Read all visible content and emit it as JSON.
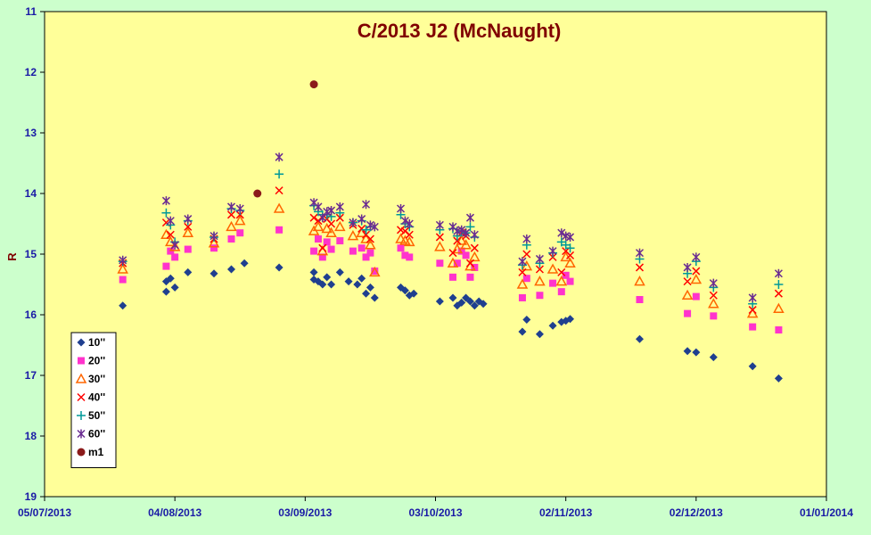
{
  "chart_data": {
    "type": "scatter",
    "title": "C/2013 J2 (McNaught)",
    "xlabel": "",
    "ylabel": "R",
    "x_type": "date",
    "xlim": [
      "2013-07-05",
      "2014-01-01"
    ],
    "x_ticks": [
      "05/07/2013",
      "04/08/2013",
      "03/09/2013",
      "03/10/2013",
      "02/11/2013",
      "02/12/2013",
      "01/01/2014"
    ],
    "ylim": [
      11,
      19
    ],
    "y_reversed": true,
    "y_ticks": [
      "11",
      "12",
      "13",
      "14",
      "15",
      "16",
      "17",
      "18",
      "19"
    ],
    "grid": false,
    "legend_position": "bottom-left",
    "colors": {
      "plot_background": "#ffff99",
      "page_background": "#ccffcc",
      "title": "#800000",
      "ticks": "#1a1aa6"
    },
    "series": [
      {
        "name": "10''",
        "marker": "diamond",
        "color": "#1f3f8f",
        "points": [
          [
            "2013-07-23",
            15.85
          ],
          [
            "2013-08-02",
            15.62
          ],
          [
            "2013-08-02",
            15.45
          ],
          [
            "2013-08-03",
            15.4
          ],
          [
            "2013-08-04",
            15.55
          ],
          [
            "2013-08-07",
            15.3
          ],
          [
            "2013-08-13",
            15.32
          ],
          [
            "2013-08-17",
            15.25
          ],
          [
            "2013-08-20",
            15.15
          ],
          [
            "2013-08-28",
            15.22
          ],
          [
            "2013-09-05",
            15.3
          ],
          [
            "2013-09-05",
            15.42
          ],
          [
            "2013-09-06",
            15.45
          ],
          [
            "2013-09-07",
            15.5
          ],
          [
            "2013-09-08",
            15.38
          ],
          [
            "2013-09-09",
            15.5
          ],
          [
            "2013-09-11",
            15.3
          ],
          [
            "2013-09-13",
            15.45
          ],
          [
            "2013-09-15",
            15.5
          ],
          [
            "2013-09-16",
            15.4
          ],
          [
            "2013-09-17",
            15.65
          ],
          [
            "2013-09-18",
            15.55
          ],
          [
            "2013-09-19",
            15.72
          ],
          [
            "2013-09-25",
            15.55
          ],
          [
            "2013-09-26",
            15.6
          ],
          [
            "2013-09-27",
            15.68
          ],
          [
            "2013-09-28",
            15.65
          ],
          [
            "2013-10-04",
            15.78
          ],
          [
            "2013-10-07",
            15.72
          ],
          [
            "2013-10-08",
            15.85
          ],
          [
            "2013-10-09",
            15.8
          ],
          [
            "2013-10-10",
            15.72
          ],
          [
            "2013-10-11",
            15.78
          ],
          [
            "2013-10-12",
            15.85
          ],
          [
            "2013-10-13",
            15.78
          ],
          [
            "2013-10-14",
            15.82
          ],
          [
            "2013-10-23",
            16.28
          ],
          [
            "2013-10-24",
            16.08
          ],
          [
            "2013-10-27",
            16.32
          ],
          [
            "2013-10-30",
            16.18
          ],
          [
            "2013-11-01",
            16.12
          ],
          [
            "2013-11-02",
            16.1
          ],
          [
            "2013-11-03",
            16.07
          ],
          [
            "2013-11-19",
            16.4
          ],
          [
            "2013-11-30",
            16.6
          ],
          [
            "2013-12-02",
            16.62
          ],
          [
            "2013-12-06",
            16.7
          ],
          [
            "2013-12-15",
            16.85
          ],
          [
            "2013-12-21",
            17.05
          ]
        ]
      },
      {
        "name": "20''",
        "marker": "square",
        "color": "#ff33cc",
        "points": [
          [
            "2013-07-23",
            15.42
          ],
          [
            "2013-08-02",
            15.2
          ],
          [
            "2013-08-03",
            14.95
          ],
          [
            "2013-08-04",
            15.05
          ],
          [
            "2013-08-07",
            14.92
          ],
          [
            "2013-08-13",
            14.9
          ],
          [
            "2013-08-17",
            14.75
          ],
          [
            "2013-08-19",
            14.65
          ],
          [
            "2013-08-28",
            14.6
          ],
          [
            "2013-09-05",
            14.95
          ],
          [
            "2013-09-06",
            14.75
          ],
          [
            "2013-09-07",
            15.05
          ],
          [
            "2013-09-08",
            14.8
          ],
          [
            "2013-09-09",
            14.92
          ],
          [
            "2013-09-11",
            14.78
          ],
          [
            "2013-09-14",
            14.95
          ],
          [
            "2013-09-16",
            14.9
          ],
          [
            "2013-09-17",
            15.05
          ],
          [
            "2013-09-18",
            14.98
          ],
          [
            "2013-09-19",
            15.28
          ],
          [
            "2013-09-25",
            14.9
          ],
          [
            "2013-09-26",
            15.02
          ],
          [
            "2013-09-27",
            15.05
          ],
          [
            "2013-10-04",
            15.15
          ],
          [
            "2013-10-07",
            15.38
          ],
          [
            "2013-10-08",
            15.15
          ],
          [
            "2013-10-09",
            14.95
          ],
          [
            "2013-10-10",
            15.02
          ],
          [
            "2013-10-11",
            15.38
          ],
          [
            "2013-10-12",
            15.22
          ],
          [
            "2013-10-23",
            15.72
          ],
          [
            "2013-10-24",
            15.4
          ],
          [
            "2013-10-27",
            15.68
          ],
          [
            "2013-10-30",
            15.48
          ],
          [
            "2013-11-01",
            15.62
          ],
          [
            "2013-11-02",
            15.35
          ],
          [
            "2013-11-03",
            15.45
          ],
          [
            "2013-11-19",
            15.75
          ],
          [
            "2013-11-30",
            15.98
          ],
          [
            "2013-12-02",
            15.7
          ],
          [
            "2013-12-06",
            16.02
          ],
          [
            "2013-12-15",
            16.2
          ],
          [
            "2013-12-21",
            16.25
          ]
        ]
      },
      {
        "name": "30''",
        "marker": "triangle",
        "color": "#ff6600",
        "points": [
          [
            "2013-07-23",
            15.25
          ],
          [
            "2013-08-02",
            14.68
          ],
          [
            "2013-08-03",
            14.8
          ],
          [
            "2013-08-04",
            14.88
          ],
          [
            "2013-08-07",
            14.65
          ],
          [
            "2013-08-13",
            14.82
          ],
          [
            "2013-08-17",
            14.55
          ],
          [
            "2013-08-19",
            14.45
          ],
          [
            "2013-08-28",
            14.25
          ],
          [
            "2013-09-05",
            14.62
          ],
          [
            "2013-09-06",
            14.55
          ],
          [
            "2013-09-07",
            14.95
          ],
          [
            "2013-09-08",
            14.58
          ],
          [
            "2013-09-09",
            14.65
          ],
          [
            "2013-09-11",
            14.55
          ],
          [
            "2013-09-14",
            14.7
          ],
          [
            "2013-09-16",
            14.65
          ],
          [
            "2013-09-17",
            14.75
          ],
          [
            "2013-09-18",
            14.85
          ],
          [
            "2013-09-19",
            15.3
          ],
          [
            "2013-09-25",
            14.75
          ],
          [
            "2013-09-26",
            14.78
          ],
          [
            "2013-09-27",
            14.8
          ],
          [
            "2013-10-04",
            14.88
          ],
          [
            "2013-10-07",
            15.15
          ],
          [
            "2013-10-08",
            14.92
          ],
          [
            "2013-10-09",
            14.78
          ],
          [
            "2013-10-10",
            14.85
          ],
          [
            "2013-10-11",
            15.2
          ],
          [
            "2013-10-12",
            15.05
          ],
          [
            "2013-10-23",
            15.5
          ],
          [
            "2013-10-24",
            15.2
          ],
          [
            "2013-10-27",
            15.45
          ],
          [
            "2013-10-30",
            15.25
          ],
          [
            "2013-11-01",
            15.45
          ],
          [
            "2013-11-02",
            15.05
          ],
          [
            "2013-11-03",
            15.15
          ],
          [
            "2013-11-19",
            15.45
          ],
          [
            "2013-11-30",
            15.68
          ],
          [
            "2013-12-02",
            15.42
          ],
          [
            "2013-12-06",
            15.82
          ],
          [
            "2013-12-15",
            15.98
          ],
          [
            "2013-12-21",
            15.9
          ]
        ]
      },
      {
        "name": "40''",
        "marker": "x",
        "color": "#ff0000",
        "points": [
          [
            "2013-07-23",
            15.15
          ],
          [
            "2013-08-02",
            14.48
          ],
          [
            "2013-08-03",
            14.68
          ],
          [
            "2013-08-04",
            14.85
          ],
          [
            "2013-08-07",
            14.55
          ],
          [
            "2013-08-13",
            14.75
          ],
          [
            "2013-08-17",
            14.35
          ],
          [
            "2013-08-19",
            14.35
          ],
          [
            "2013-08-28",
            13.95
          ],
          [
            "2013-09-05",
            14.4
          ],
          [
            "2013-09-06",
            14.45
          ],
          [
            "2013-09-07",
            14.9
          ],
          [
            "2013-09-08",
            14.42
          ],
          [
            "2013-09-09",
            14.5
          ],
          [
            "2013-09-11",
            14.4
          ],
          [
            "2013-09-14",
            14.52
          ],
          [
            "2013-09-16",
            14.58
          ],
          [
            "2013-09-17",
            14.68
          ],
          [
            "2013-09-18",
            14.75
          ],
          [
            "2013-09-25",
            14.6
          ],
          [
            "2013-09-26",
            14.62
          ],
          [
            "2013-09-27",
            14.68
          ],
          [
            "2013-10-04",
            14.72
          ],
          [
            "2013-10-07",
            14.98
          ],
          [
            "2013-10-08",
            14.78
          ],
          [
            "2013-10-09",
            14.65
          ],
          [
            "2013-10-10",
            14.7
          ],
          [
            "2013-10-11",
            15.15
          ],
          [
            "2013-10-12",
            14.9
          ],
          [
            "2013-10-23",
            15.3
          ],
          [
            "2013-10-24",
            15.0
          ],
          [
            "2013-10-27",
            15.25
          ],
          [
            "2013-10-30",
            15.05
          ],
          [
            "2013-11-01",
            15.3
          ],
          [
            "2013-11-02",
            14.95
          ],
          [
            "2013-11-03",
            15.02
          ],
          [
            "2013-11-19",
            15.22
          ],
          [
            "2013-11-30",
            15.45
          ],
          [
            "2013-12-02",
            15.28
          ],
          [
            "2013-12-06",
            15.68
          ],
          [
            "2013-12-15",
            15.92
          ],
          [
            "2013-12-21",
            15.65
          ]
        ]
      },
      {
        "name": "50''",
        "marker": "plus",
        "color": "#009999",
        "points": [
          [
            "2013-07-23",
            15.12
          ],
          [
            "2013-08-02",
            14.32
          ],
          [
            "2013-08-03",
            14.52
          ],
          [
            "2013-08-04",
            14.8
          ],
          [
            "2013-08-07",
            14.45
          ],
          [
            "2013-08-13",
            14.72
          ],
          [
            "2013-08-17",
            14.25
          ],
          [
            "2013-08-19",
            14.28
          ],
          [
            "2013-08-28",
            13.68
          ],
          [
            "2013-09-05",
            14.2
          ],
          [
            "2013-09-06",
            14.3
          ],
          [
            "2013-09-07",
            14.35
          ],
          [
            "2013-09-08",
            14.35
          ],
          [
            "2013-09-09",
            14.38
          ],
          [
            "2013-09-11",
            14.32
          ],
          [
            "2013-09-14",
            14.48
          ],
          [
            "2013-09-16",
            14.45
          ],
          [
            "2013-09-17",
            14.6
          ],
          [
            "2013-09-18",
            14.55
          ],
          [
            "2013-09-25",
            14.35
          ],
          [
            "2013-09-26",
            14.5
          ],
          [
            "2013-09-27",
            14.55
          ],
          [
            "2013-10-04",
            14.6
          ],
          [
            "2013-10-07",
            14.58
          ],
          [
            "2013-10-08",
            14.7
          ],
          [
            "2013-10-09",
            14.62
          ],
          [
            "2013-10-10",
            14.65
          ],
          [
            "2013-10-11",
            14.55
          ],
          [
            "2013-10-12",
            14.72
          ],
          [
            "2013-10-23",
            15.18
          ],
          [
            "2013-10-24",
            14.85
          ],
          [
            "2013-10-27",
            15.15
          ],
          [
            "2013-10-30",
            14.98
          ],
          [
            "2013-11-01",
            14.8
          ],
          [
            "2013-11-02",
            14.85
          ],
          [
            "2013-11-03",
            14.9
          ],
          [
            "2013-11-19",
            15.08
          ],
          [
            "2013-11-30",
            15.32
          ],
          [
            "2013-12-02",
            15.12
          ],
          [
            "2013-12-06",
            15.55
          ],
          [
            "2013-12-15",
            15.82
          ],
          [
            "2013-12-21",
            15.5
          ]
        ]
      },
      {
        "name": "60''",
        "marker": "star",
        "color": "#6a2c91",
        "points": [
          [
            "2013-07-23",
            15.1
          ],
          [
            "2013-08-02",
            14.12
          ],
          [
            "2013-08-03",
            14.45
          ],
          [
            "2013-08-04",
            14.85
          ],
          [
            "2013-08-07",
            14.42
          ],
          [
            "2013-08-13",
            14.7
          ],
          [
            "2013-08-17",
            14.22
          ],
          [
            "2013-08-19",
            14.25
          ],
          [
            "2013-08-28",
            13.4
          ],
          [
            "2013-09-05",
            14.15
          ],
          [
            "2013-09-06",
            14.22
          ],
          [
            "2013-09-07",
            14.4
          ],
          [
            "2013-09-08",
            14.3
          ],
          [
            "2013-09-09",
            14.28
          ],
          [
            "2013-09-11",
            14.22
          ],
          [
            "2013-09-14",
            14.48
          ],
          [
            "2013-09-16",
            14.42
          ],
          [
            "2013-09-17",
            14.18
          ],
          [
            "2013-09-18",
            14.52
          ],
          [
            "2013-09-19",
            14.55
          ],
          [
            "2013-09-25",
            14.25
          ],
          [
            "2013-09-26",
            14.45
          ],
          [
            "2013-09-27",
            14.5
          ],
          [
            "2013-10-04",
            14.52
          ],
          [
            "2013-10-07",
            14.55
          ],
          [
            "2013-10-08",
            14.62
          ],
          [
            "2013-10-09",
            14.6
          ],
          [
            "2013-10-10",
            14.65
          ],
          [
            "2013-10-11",
            14.4
          ],
          [
            "2013-10-12",
            14.68
          ],
          [
            "2013-10-23",
            15.12
          ],
          [
            "2013-10-24",
            14.75
          ],
          [
            "2013-10-27",
            15.08
          ],
          [
            "2013-10-30",
            14.95
          ],
          [
            "2013-11-01",
            14.65
          ],
          [
            "2013-11-02",
            14.7
          ],
          [
            "2013-11-03",
            14.72
          ],
          [
            "2013-11-19",
            14.98
          ],
          [
            "2013-11-30",
            15.22
          ],
          [
            "2013-12-02",
            15.05
          ],
          [
            "2013-12-06",
            15.48
          ],
          [
            "2013-12-15",
            15.72
          ],
          [
            "2013-12-21",
            15.32
          ]
        ]
      },
      {
        "name": "m1",
        "marker": "circle",
        "color": "#8b1a1a",
        "points": [
          [
            "2013-08-23",
            14.0
          ],
          [
            "2013-09-05",
            12.2
          ]
        ]
      }
    ]
  }
}
